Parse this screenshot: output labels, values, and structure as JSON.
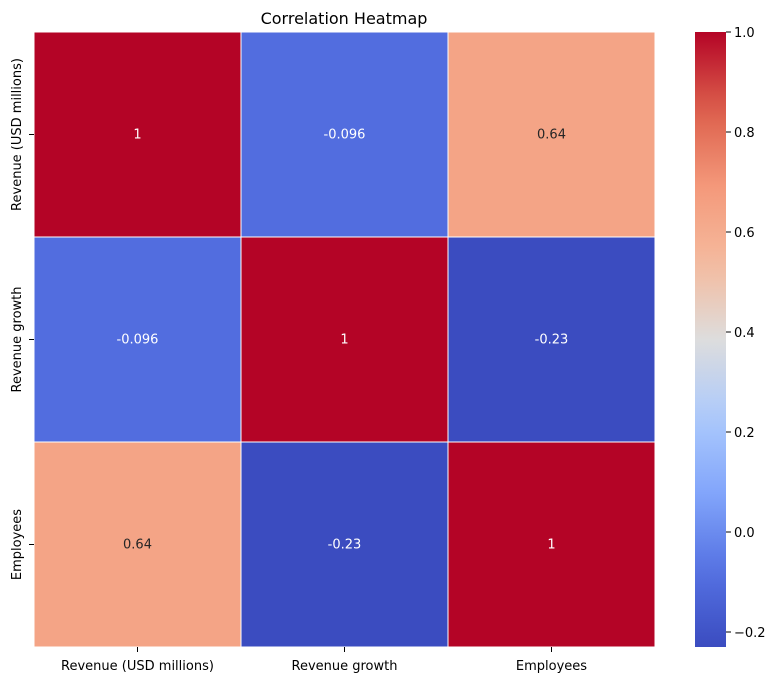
{
  "chart_data": {
    "type": "heatmap",
    "title": "Correlation Heatmap",
    "xlabel": "",
    "ylabel": "",
    "x_categories": [
      "Revenue (USD millions)",
      "Revenue growth",
      "Employees"
    ],
    "y_categories": [
      "Revenue (USD millions)",
      "Revenue growth",
      "Employees"
    ],
    "values": [
      [
        1,
        -0.096,
        0.64
      ],
      [
        -0.096,
        1,
        -0.23
      ],
      [
        0.64,
        -0.23,
        1
      ]
    ],
    "cell_labels": [
      [
        "1",
        "-0.096",
        "0.64"
      ],
      [
        "-0.096",
        "1",
        "-0.23"
      ],
      [
        "0.64",
        "-0.23",
        "1"
      ]
    ],
    "colormap": "coolwarm",
    "colorbar": {
      "range": [
        -0.23,
        1.0
      ],
      "ticks": [
        -0.2,
        0.0,
        0.2,
        0.4,
        0.6,
        0.8,
        1.0
      ],
      "tick_labels": [
        "−0.2",
        "0.0",
        "0.2",
        "0.4",
        "0.6",
        "0.8",
        "1.0"
      ]
    },
    "grid": false,
    "colors": {
      "low": "#3b4cc0",
      "mid": "#dddddd",
      "high": "#b40426",
      "cell_border": "#ffffff"
    }
  }
}
